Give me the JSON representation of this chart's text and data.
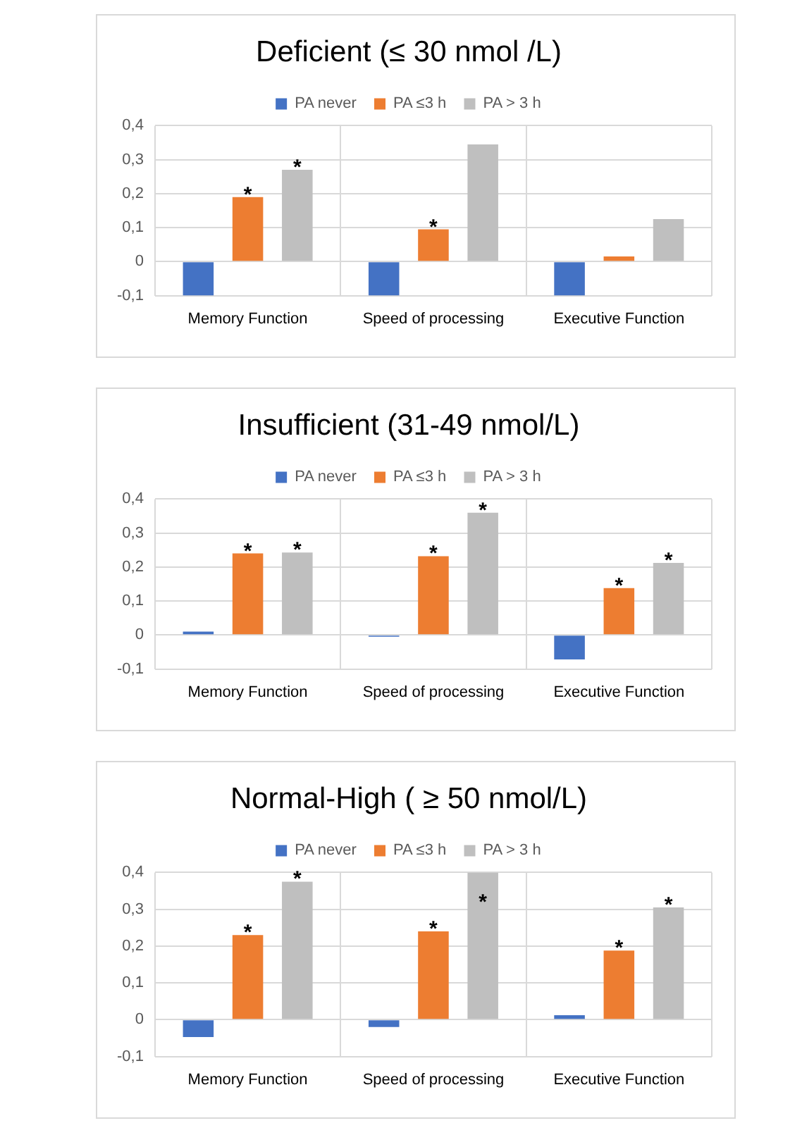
{
  "chart_data": [
    {
      "type": "bar",
      "title": "Deficient (≤ 30 nmol /L)",
      "categories": [
        "Memory Function",
        "Speed of processing",
        "Executive Function"
      ],
      "series": [
        {
          "name": "PA never",
          "color": "#4472c4",
          "values": [
            -0.1,
            -0.1,
            -0.1
          ]
        },
        {
          "name": "PA ≤3 h",
          "color": "#ed7d31",
          "values": [
            0.19,
            0.095,
            0.015
          ],
          "value_labels": [
            "*",
            "*",
            null
          ]
        },
        {
          "name": "PA > 3 h",
          "color": "#bfbfbf",
          "values": [
            0.27,
            0.345,
            0.125
          ],
          "value_labels": [
            "*",
            null,
            null
          ]
        }
      ],
      "ylim": [
        -0.1,
        0.4
      ],
      "yticks": [
        {
          "value": -0.1,
          "label": "-0,1"
        },
        {
          "value": 0,
          "label": "0"
        },
        {
          "value": 0.1,
          "label": "0,1"
        },
        {
          "value": 0.2,
          "label": "0,2"
        },
        {
          "value": 0.3,
          "label": "0,3"
        },
        {
          "value": 0.4,
          "label": "0,4"
        }
      ],
      "grid": true,
      "legend": "top"
    },
    {
      "type": "bar",
      "title": "Insufficient (31-49 nmol/L)",
      "categories": [
        "Memory Function",
        "Speed of processing",
        "Executive Function"
      ],
      "series": [
        {
          "name": "PA never",
          "color": "#4472c4",
          "values": [
            0.01,
            -0.005,
            -0.072
          ]
        },
        {
          "name": "PA ≤3 h",
          "color": "#ed7d31",
          "values": [
            0.24,
            0.232,
            0.138
          ],
          "value_labels": [
            "*",
            "*",
            "*"
          ]
        },
        {
          "name": "PA > 3 h",
          "color": "#bfbfbf",
          "values": [
            0.243,
            0.36,
            0.212
          ],
          "value_labels": [
            "*",
            "*",
            "*"
          ]
        }
      ],
      "ylim": [
        -0.1,
        0.4
      ],
      "yticks": [
        {
          "value": -0.1,
          "label": "-0,1"
        },
        {
          "value": 0,
          "label": "0"
        },
        {
          "value": 0.1,
          "label": "0,1"
        },
        {
          "value": 0.2,
          "label": "0,2"
        },
        {
          "value": 0.3,
          "label": "0,3"
        },
        {
          "value": 0.4,
          "label": "0,4"
        }
      ],
      "grid": true,
      "legend": "top"
    },
    {
      "type": "bar",
      "title": "Normal-High ( ≥ 50 nmol/L)",
      "categories": [
        "Memory Function",
        "Speed of processing",
        "Executive Function"
      ],
      "series": [
        {
          "name": "PA never",
          "color": "#4472c4",
          "values": [
            -0.047,
            -0.02,
            0.012
          ]
        },
        {
          "name": "PA ≤3 h",
          "color": "#ed7d31",
          "values": [
            0.23,
            0.24,
            0.188
          ],
          "value_labels": [
            "*",
            "*",
            "*"
          ]
        },
        {
          "name": "PA > 3 h",
          "color": "#bfbfbf",
          "values": [
            0.375,
            0.4,
            0.305
          ],
          "value_labels": [
            "*",
            "*",
            "*"
          ]
        }
      ],
      "ylim": [
        -0.1,
        0.4
      ],
      "yticks": [
        {
          "value": -0.1,
          "label": "-0,1"
        },
        {
          "value": 0,
          "label": "0"
        },
        {
          "value": 0.1,
          "label": "0,1"
        },
        {
          "value": 0.2,
          "label": "0,2"
        },
        {
          "value": 0.3,
          "label": "0,3"
        },
        {
          "value": 0.4,
          "label": "0,4"
        }
      ],
      "grid": true,
      "legend": "top"
    }
  ]
}
